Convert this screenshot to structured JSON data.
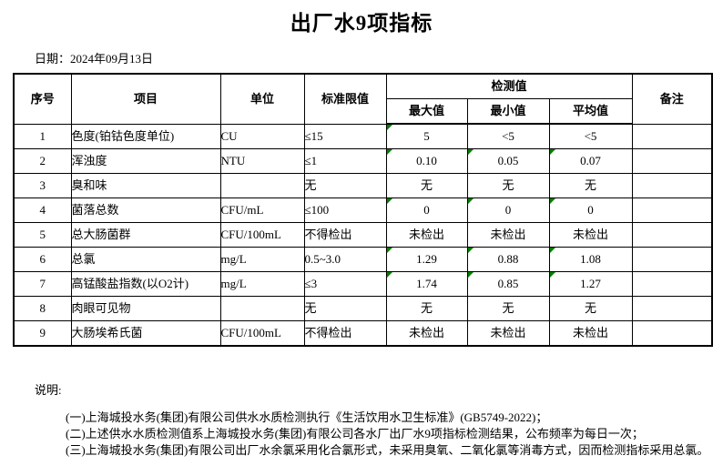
{
  "title": "出厂水9项指标",
  "date_label": "日期：2024年09月13日",
  "table": {
    "headers": {
      "seq": "序号",
      "item": "项目",
      "unit": "单位",
      "limit": "标准限值",
      "detection": "检测值",
      "max": "最大值",
      "min": "最小值",
      "avg": "平均值",
      "remark": "备注"
    },
    "rows": [
      {
        "seq": "1",
        "item": "色度(铂钴色度单位)",
        "unit": "CU",
        "limit": "≤15",
        "max": "5",
        "min": "<5",
        "avg": "<5",
        "remark": "",
        "flags": [
          "max"
        ]
      },
      {
        "seq": "2",
        "item": "浑浊度",
        "unit": "NTU",
        "limit": "≤1",
        "max": "0.10",
        "min": "0.05",
        "avg": "0.07",
        "remark": "",
        "flags": [
          "max",
          "min",
          "avg"
        ]
      },
      {
        "seq": "3",
        "item": "臭和味",
        "unit": "",
        "limit": "无",
        "max": "无",
        "min": "无",
        "avg": "无",
        "remark": "",
        "flags": []
      },
      {
        "seq": "4",
        "item": "菌落总数",
        "unit": "CFU/mL",
        "limit": "≤100",
        "max": "0",
        "min": "0",
        "avg": "0",
        "remark": "",
        "flags": [
          "max",
          "min",
          "avg"
        ]
      },
      {
        "seq": "5",
        "item": "总大肠菌群",
        "unit": "CFU/100mL",
        "limit": "不得检出",
        "max": "未检出",
        "min": "未检出",
        "avg": "未检出",
        "remark": "",
        "flags": []
      },
      {
        "seq": "6",
        "item": "总氯",
        "unit": "mg/L",
        "limit": "0.5~3.0",
        "max": "1.29",
        "min": "0.88",
        "avg": "1.08",
        "remark": "",
        "flags": [
          "max",
          "min",
          "avg"
        ]
      },
      {
        "seq": "7",
        "item": "高锰酸盐指数(以O2计)",
        "unit": "mg/L",
        "limit": "≤3",
        "max": "1.74",
        "min": "0.85",
        "avg": "1.27",
        "remark": "",
        "flags": [
          "max",
          "min",
          "avg"
        ]
      },
      {
        "seq": "8",
        "item": "肉眼可见物",
        "unit": "",
        "limit": "无",
        "max": "无",
        "min": "无",
        "avg": "无",
        "remark": "",
        "flags": []
      },
      {
        "seq": "9",
        "item": "大肠埃希氏菌",
        "unit": "CFU/100mL",
        "limit": "不得检出",
        "max": "未检出",
        "min": "未检出",
        "avg": "未检出",
        "remark": "",
        "flags": []
      }
    ]
  },
  "notes": {
    "label": "说明:",
    "items": [
      "(一)上海城投水务(集团)有限公司供水水质检测执行《生活饮用水卫生标准》(GB5749-2022)；",
      "(二)上述供水水质检测值系上海城投水务(集团)有限公司各水厂出厂水9项指标检测结果，公布频率为每日一次；",
      "(三)上海城投水务(集团)有限公司出厂水余氯采用化合氯形式，未采用臭氧、二氧化氯等消毒方式，因而检测指标采用总氯。"
    ]
  },
  "colors": {
    "flag_green": "#008000",
    "border": "#000000",
    "background": "#ffffff"
  }
}
